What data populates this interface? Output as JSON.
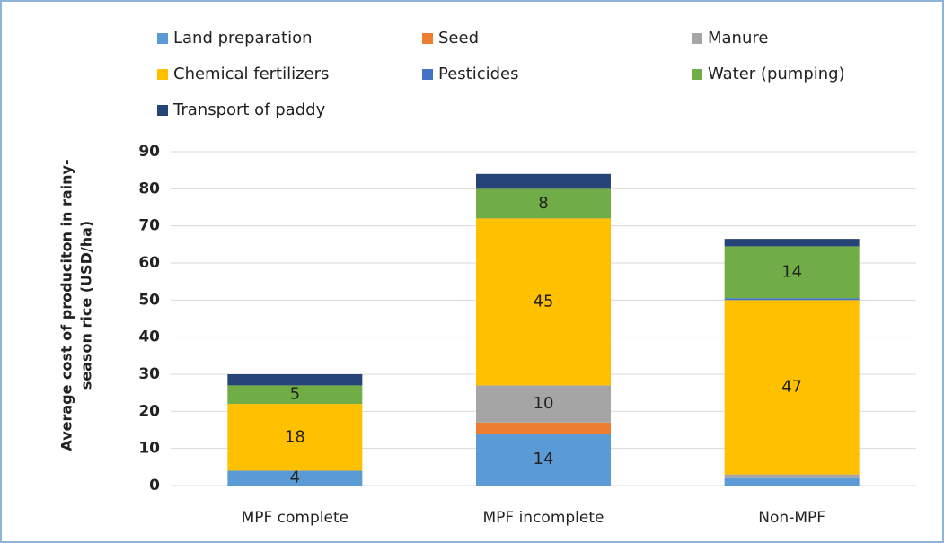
{
  "chart_data": {
    "type": "stacked_bar",
    "ylabel": [
      "Average cost of produciton in rainy-",
      "season rice (USD/ha)"
    ],
    "categories": [
      "MPF complete",
      "MPF incomplete",
      "Non-MPF"
    ],
    "series": [
      {
        "name": "Land preparation",
        "color": "#5b9bd5",
        "values": [
          4,
          14,
          2
        ],
        "value_labels": [
          "4",
          "14",
          null
        ]
      },
      {
        "name": "Seed",
        "color": "#ed7d31",
        "values": [
          0,
          3,
          0
        ],
        "value_labels": [
          null,
          null,
          null
        ]
      },
      {
        "name": "Manure",
        "color": "#a5a5a5",
        "values": [
          0,
          10,
          1
        ],
        "value_labels": [
          null,
          "10",
          null
        ]
      },
      {
        "name": "Chemical fertilizers",
        "color": "#ffc000",
        "values": [
          18,
          45,
          47
        ],
        "value_labels": [
          "18",
          "45",
          "47"
        ]
      },
      {
        "name": "Pesticides",
        "color": "#4472c4",
        "values": [
          0,
          0,
          0.5
        ],
        "value_labels": [
          null,
          null,
          null
        ]
      },
      {
        "name": "Water (pumping)",
        "color": "#70ad47",
        "values": [
          5,
          8,
          14
        ],
        "value_labels": [
          "5",
          "8",
          "14"
        ]
      },
      {
        "name": "Transport of paddy",
        "color": "#264478",
        "values": [
          3,
          4,
          2
        ],
        "value_labels": [
          null,
          null,
          null
        ]
      }
    ],
    "ylim": [
      0,
      90
    ],
    "yticks": [
      0,
      10,
      20,
      30,
      40,
      50,
      60,
      70,
      80,
      90
    ],
    "grid": true,
    "legend": "top"
  }
}
